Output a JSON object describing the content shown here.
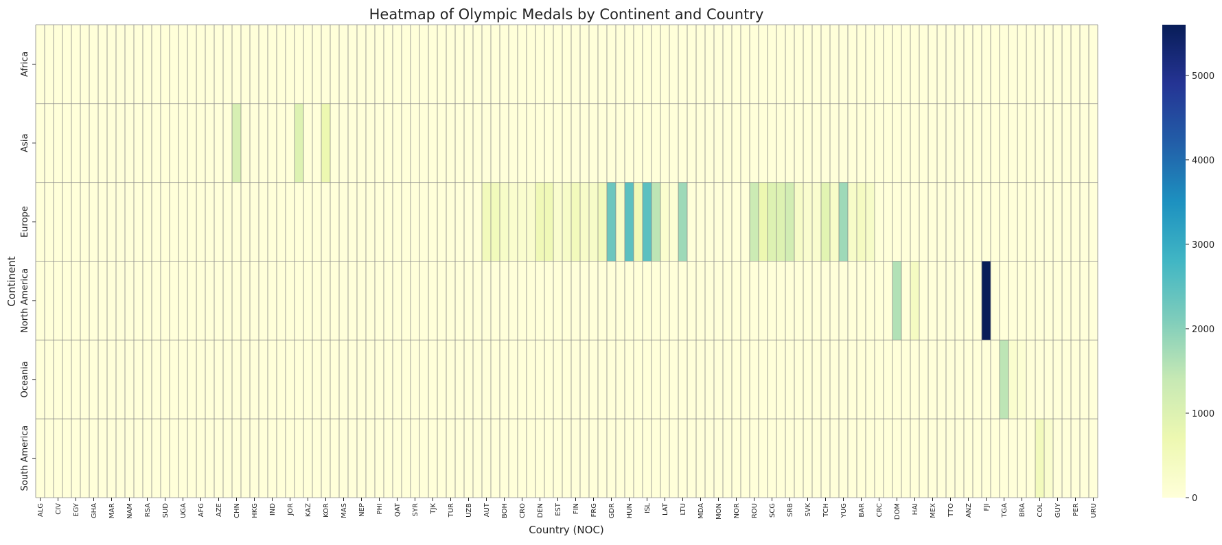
{
  "chart_data": {
    "type": "heatmap",
    "title": "Heatmap of Olympic Medals by Continent and Country",
    "xlabel": "Country (NOC)",
    "ylabel": "Continent",
    "rows": [
      "Africa",
      "Asia",
      "Europe",
      "North America",
      "Oceania",
      "South America"
    ],
    "tick_labels": [
      "ALG",
      "CIV",
      "EGY",
      "GHA",
      "MAR",
      "NAM",
      "RSA",
      "SUD",
      "UGA",
      "AFG",
      "AZE",
      "CHN",
      "HKG",
      "IND",
      "JOR",
      "KAZ",
      "KOR",
      "MAS",
      "NEP",
      "PHI",
      "QAT",
      "SYR",
      "TJK",
      "TUR",
      "UZB",
      "AUT",
      "BOH",
      "CRO",
      "DEN",
      "EST",
      "FIN",
      "FRG",
      "GDR",
      "HUN",
      "ISL",
      "LAT",
      "LTU",
      "MDA",
      "MON",
      "NOR",
      "ROU",
      "SCG",
      "SRB",
      "SVK",
      "TCH",
      "YUG",
      "BAR",
      "CRC",
      "DOM",
      "HAI",
      "MEX",
      "TTO",
      "ANZ",
      "FJI",
      "TGA",
      "BRA",
      "COL",
      "GUY",
      "PER",
      "URU"
    ],
    "num_columns": 119,
    "cells": [
      {
        "row": "Asia",
        "col": 22,
        "value": 1100
      },
      {
        "row": "Asia",
        "col": 29,
        "value": 1000
      },
      {
        "row": "Asia",
        "col": 32,
        "value": 700
      },
      {
        "row": "Europe",
        "col": 50,
        "value": 500
      },
      {
        "row": "Europe",
        "col": 51,
        "value": 500
      },
      {
        "row": "Europe",
        "col": 52,
        "value": 300
      },
      {
        "row": "Europe",
        "col": 53,
        "value": 200
      },
      {
        "row": "Europe",
        "col": 54,
        "value": 200
      },
      {
        "row": "Europe",
        "col": 55,
        "value": 200
      },
      {
        "row": "Europe",
        "col": 56,
        "value": 600
      },
      {
        "row": "Europe",
        "col": 57,
        "value": 600
      },
      {
        "row": "Europe",
        "col": 58,
        "value": 200
      },
      {
        "row": "Europe",
        "col": 59,
        "value": 300
      },
      {
        "row": "Europe",
        "col": 60,
        "value": 500
      },
      {
        "row": "Europe",
        "col": 61,
        "value": 300
      },
      {
        "row": "Europe",
        "col": 62,
        "value": 300
      },
      {
        "row": "Europe",
        "col": 63,
        "value": 500
      },
      {
        "row": "Europe",
        "col": 64,
        "value": 2300
      },
      {
        "row": "Europe",
        "col": 65,
        "value": 300
      },
      {
        "row": "Europe",
        "col": 66,
        "value": 2500
      },
      {
        "row": "Europe",
        "col": 67,
        "value": 600
      },
      {
        "row": "Europe",
        "col": 68,
        "value": 2500
      },
      {
        "row": "Europe",
        "col": 69,
        "value": 1500
      },
      {
        "row": "Europe",
        "col": 70,
        "value": 200
      },
      {
        "row": "Europe",
        "col": 71,
        "value": 100
      },
      {
        "row": "Europe",
        "col": 72,
        "value": 1800
      },
      {
        "row": "Europe",
        "col": 80,
        "value": 1300
      },
      {
        "row": "Europe",
        "col": 81,
        "value": 700
      },
      {
        "row": "Europe",
        "col": 82,
        "value": 1000
      },
      {
        "row": "Europe",
        "col": 83,
        "value": 1000
      },
      {
        "row": "Europe",
        "col": 84,
        "value": 1200
      },
      {
        "row": "Europe",
        "col": 85,
        "value": 300
      },
      {
        "row": "Europe",
        "col": 86,
        "value": 200
      },
      {
        "row": "Europe",
        "col": 87,
        "value": 200
      },
      {
        "row": "Europe",
        "col": 88,
        "value": 900
      },
      {
        "row": "Europe",
        "col": 89,
        "value": 300
      },
      {
        "row": "Europe",
        "col": 90,
        "value": 1800
      },
      {
        "row": "Europe",
        "col": 91,
        "value": 300
      },
      {
        "row": "Europe",
        "col": 92,
        "value": 400
      },
      {
        "row": "Europe",
        "col": 93,
        "value": 300
      },
      {
        "row": "North America",
        "col": 96,
        "value": 1600
      },
      {
        "row": "North America",
        "col": 98,
        "value": 400
      },
      {
        "row": "North America",
        "col": 106,
        "value": 5600
      },
      {
        "row": "Oceania",
        "col": 108,
        "value": 1500
      },
      {
        "row": "Oceania",
        "col": 109,
        "value": 200
      },
      {
        "row": "Oceania",
        "col": 110,
        "value": 100
      },
      {
        "row": "South America",
        "col": 112,
        "value": 500
      },
      {
        "row": "South America",
        "col": 113,
        "value": 200
      }
    ],
    "vmin": 0,
    "vmax": 5600,
    "colormap": "YlGnBu",
    "cell_grid_color": "#888888",
    "colorbar_ticks": [
      0,
      1000,
      2000,
      3000,
      4000,
      5000
    ]
  }
}
